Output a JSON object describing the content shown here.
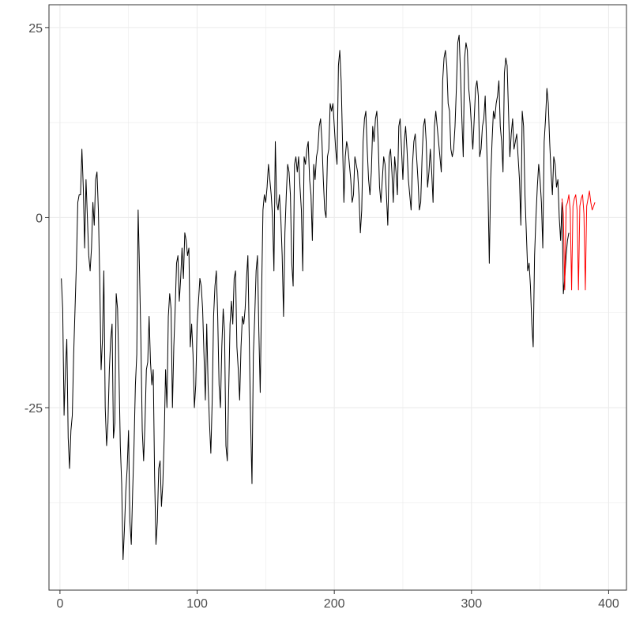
{
  "chart_data": {
    "type": "line",
    "title": "",
    "xlabel": "",
    "ylabel": "",
    "xlim": [
      -8,
      413
    ],
    "ylim": [
      -49,
      28
    ],
    "grid": true,
    "legend": "none",
    "x_ticks": [
      0,
      100,
      200,
      300,
      400
    ],
    "x_tick_labels": [
      "0",
      "100",
      "200",
      "300",
      "400"
    ],
    "y_ticks": [
      -25,
      0,
      25
    ],
    "y_tick_labels": [
      "-25",
      "0",
      "25"
    ],
    "series": [
      {
        "color": "#000000",
        "x_start": 1,
        "values": [
          -8,
          -12,
          -26,
          -20,
          -16,
          -29,
          -33,
          -28,
          -26,
          -18,
          -12,
          -6,
          2,
          3,
          3,
          9,
          4,
          -4,
          5,
          0,
          -5,
          -7,
          -4,
          2,
          -1,
          5,
          6,
          1,
          -8,
          -20,
          -16,
          -7,
          -25,
          -30,
          -27,
          -20,
          -16,
          -14,
          -29,
          -27,
          -10,
          -12,
          -20,
          -30,
          -35,
          -45,
          -41,
          -36,
          -33,
          -28,
          -40,
          -43,
          -36,
          -30,
          -22,
          -18,
          1,
          -7,
          -16,
          -28,
          -32,
          -27,
          -20,
          -19,
          -13,
          -19,
          -22,
          -20,
          -34,
          -43,
          -40,
          -33,
          -32,
          -38,
          -35,
          -29,
          -20,
          -25,
          -13,
          -10,
          -12,
          -25,
          -17,
          -12,
          -6,
          -5,
          -11,
          -8,
          -4,
          -8,
          -2,
          -3,
          -5,
          -4,
          -17,
          -14,
          -18,
          -25,
          -22,
          -14,
          -11,
          -8,
          -9,
          -12,
          -18,
          -24,
          -14,
          -22,
          -27,
          -31,
          -24,
          -13,
          -9,
          -7,
          -13,
          -22,
          -25,
          -17,
          -12,
          -15,
          -30,
          -32,
          -23,
          -14,
          -11,
          -14,
          -8,
          -7,
          -17,
          -20,
          -24,
          -17,
          -13,
          -14,
          -12,
          -8,
          -5,
          -16,
          -27,
          -35,
          -18,
          -13,
          -7,
          -5,
          -15,
          -23,
          -10,
          1,
          3,
          2,
          4,
          7,
          5,
          3,
          0,
          -7,
          10,
          2,
          1,
          3,
          0,
          -5,
          -13,
          -2,
          3,
          7,
          6,
          3,
          -6,
          -9,
          7,
          8,
          6,
          8,
          4,
          1,
          -7,
          8,
          7,
          9,
          10,
          5,
          3,
          -3,
          7,
          5,
          8,
          9,
          12,
          13,
          10,
          5,
          1,
          0,
          8,
          9,
          15,
          14,
          15,
          12,
          9,
          7,
          20,
          22,
          18,
          10,
          2,
          8,
          10,
          9,
          7,
          5,
          2,
          3,
          8,
          7,
          6,
          3,
          -2,
          1,
          10,
          13,
          14,
          9,
          5,
          3,
          6,
          12,
          10,
          13,
          14,
          10,
          4,
          2,
          5,
          8,
          7,
          3,
          -1,
          8,
          9,
          6,
          2,
          8,
          6,
          3,
          12,
          13,
          9,
          5,
          10,
          12,
          9,
          5,
          3,
          1,
          7,
          10,
          11,
          8,
          5,
          1,
          2,
          8,
          12,
          13,
          10,
          4,
          6,
          9,
          6,
          2,
          12,
          14,
          12,
          10,
          8,
          6,
          18,
          21,
          22,
          20,
          15,
          14,
          9,
          8,
          9,
          12,
          17,
          23,
          24,
          19,
          13,
          8,
          21,
          23,
          22,
          17,
          15,
          12,
          9,
          13,
          17,
          18,
          16,
          8,
          9,
          12,
          13,
          16,
          10,
          4,
          -6,
          5,
          10,
          14,
          13,
          15,
          16,
          18,
          12,
          10,
          6,
          19,
          21,
          20,
          14,
          8,
          11,
          13,
          9,
          10,
          11,
          8,
          5,
          -1,
          14,
          12,
          3,
          -2,
          -7,
          -6,
          -9,
          -14,
          -17,
          -5,
          0,
          4,
          7,
          5,
          2,
          -4,
          10,
          13,
          17,
          15,
          10,
          6,
          3,
          8,
          7,
          4,
          5,
          0,
          -3,
          2,
          -10,
          -8,
          -5,
          -3,
          -2
        ]
      },
      {
        "color": "#ff0000",
        "x_start": 366,
        "values": [
          2.5,
          0.5,
          -9.5,
          1.5,
          2,
          3,
          1,
          -9.5,
          1.5,
          2.5,
          3,
          1,
          -9.5,
          1.5,
          2.5,
          3,
          0.5,
          -9.5,
          1.5,
          2.5,
          3.5,
          2,
          1,
          1.5,
          2
        ]
      }
    ]
  }
}
